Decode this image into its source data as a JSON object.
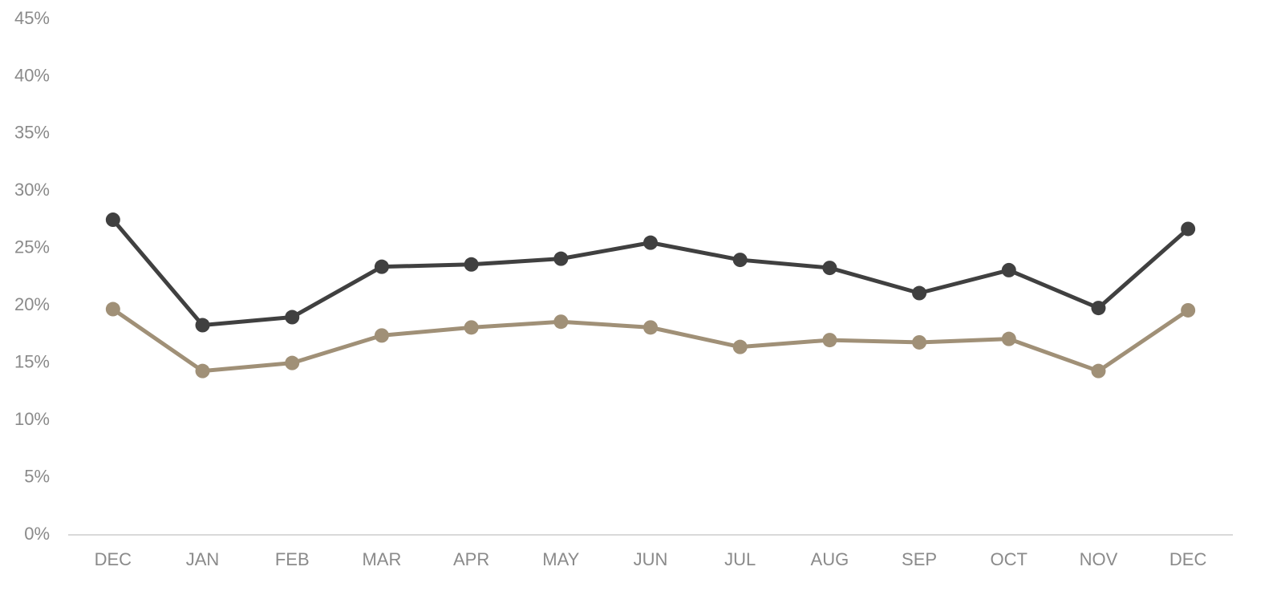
{
  "chart_data": {
    "type": "line",
    "categories": [
      "DEC",
      "JAN",
      "FEB",
      "MAR",
      "APR",
      "MAY",
      "JUN",
      "JUL",
      "AUG",
      "SEP",
      "OCT",
      "NOV",
      "DEC"
    ],
    "series": [
      {
        "color": "#404040",
        "values": [
          27.5,
          18.3,
          19.0,
          23.4,
          23.6,
          24.1,
          25.5,
          24.0,
          23.3,
          21.1,
          23.1,
          19.8,
          26.7
        ]
      },
      {
        "color": "#a09077",
        "values": [
          19.7,
          14.3,
          15.0,
          17.4,
          18.1,
          18.6,
          18.1,
          16.4,
          17.0,
          16.8,
          17.1,
          14.3,
          19.6
        ]
      }
    ],
    "ylim": [
      0,
      45
    ],
    "yticks": [
      {
        "value": 0,
        "label": "0%"
      },
      {
        "value": 5,
        "label": "5%"
      },
      {
        "value": 10,
        "label": "10%"
      },
      {
        "value": 15,
        "label": "15%"
      },
      {
        "value": 20,
        "label": "20%"
      },
      {
        "value": 25,
        "label": "25%"
      },
      {
        "value": 30,
        "label": "30%"
      },
      {
        "value": 35,
        "label": "35%"
      },
      {
        "value": 40,
        "label": "40%"
      },
      {
        "value": 45,
        "label": "45%"
      }
    ],
    "grid": false
  }
}
